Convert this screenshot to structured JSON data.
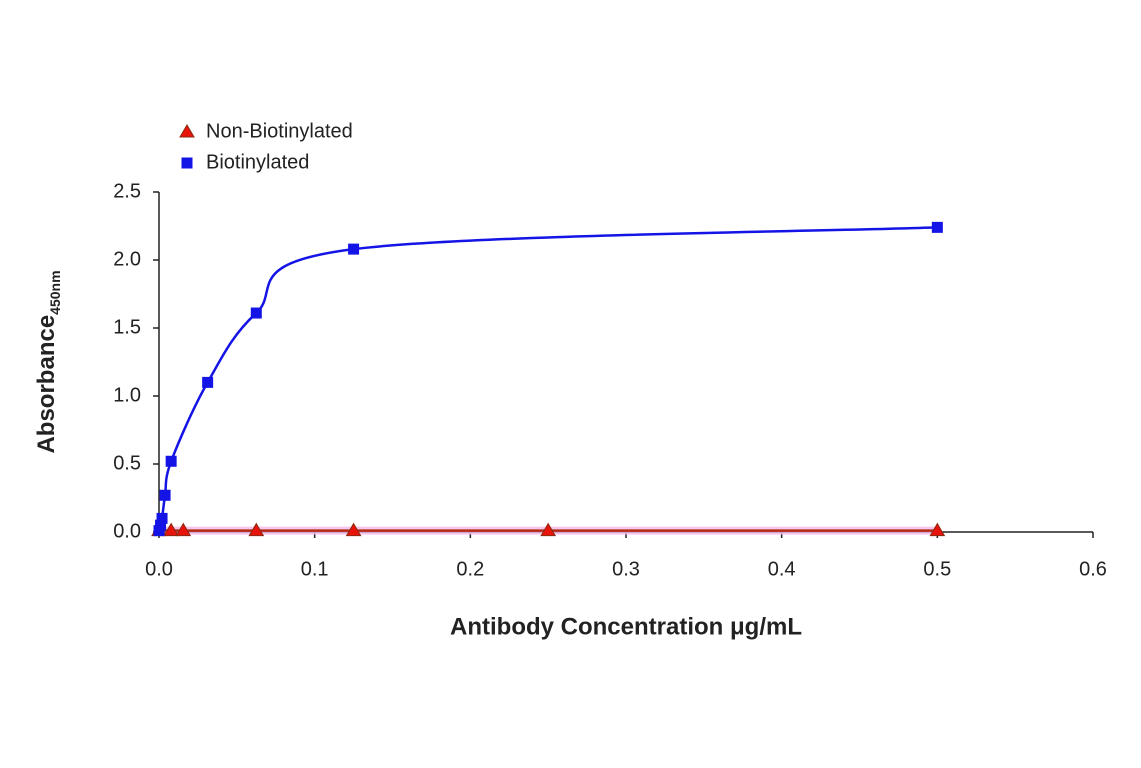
{
  "chart_data": {
    "type": "line",
    "x_label": "Antibody Concentration μg/mL",
    "y_label": "Absorbance",
    "y_label_sub": "450nm",
    "xlim": [
      0,
      0.6
    ],
    "xticks": [
      {
        "value": 0,
        "label": "0.0"
      },
      0.1,
      0.2,
      0.3,
      0.4,
      0.5,
      0.6
    ],
    "ylim": [
      0,
      2.5
    ],
    "yticks": [
      {
        "value": 0,
        "label": "0.0"
      },
      0.5,
      {
        "value": 1,
        "label": "1.0"
      },
      1.5,
      {
        "value": 2,
        "label": "2.0"
      },
      2.5
    ],
    "legend": "top-left",
    "series": [
      {
        "name": "Non-Biotinylated",
        "color": "#e8140c",
        "marker": "triangle",
        "x": [
          0,
          0.0078,
          0.0156,
          0.0625,
          0.125,
          0.25,
          0.5
        ],
        "values": [
          0.01,
          0.01,
          0.01,
          0.01,
          0.01,
          0.01,
          0.01
        ]
      },
      {
        "name": "Biotinylated",
        "color": "#1414e6",
        "marker": "square",
        "x": [
          0,
          0.00098,
          0.00195,
          0.0039,
          0.0078,
          0.03125,
          0.0625,
          0.125,
          0.5
        ],
        "values": [
          0.01,
          0.05,
          0.1,
          0.27,
          0.52,
          1.1,
          1.61,
          2.08,
          2.24
        ]
      }
    ]
  }
}
